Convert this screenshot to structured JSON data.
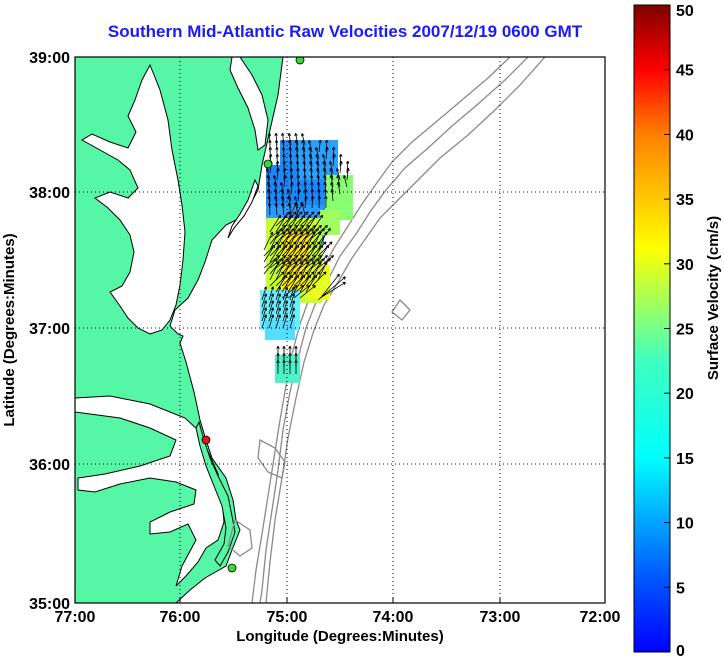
{
  "title": "Southern Mid-Atlantic Raw Velocities 2007/12/19 0600 GMT",
  "x_axis": {
    "label": "Longitude (Degrees:Minutes)",
    "ticks": [
      "77:00",
      "76:00",
      "75:00",
      "74:00",
      "73:00",
      "72:00"
    ]
  },
  "y_axis": {
    "label": "Latitude (Degrees:Minutes)",
    "ticks": [
      "39:00",
      "38:00",
      "37:00",
      "36:00",
      "35:00"
    ]
  },
  "colorbar": {
    "label": "Surface Velocity (cm/s)",
    "ticks": [
      "50",
      "45",
      "40",
      "35",
      "30",
      "25",
      "20",
      "15",
      "10",
      "5",
      "0"
    ],
    "min": 0,
    "max": 50,
    "colormap": "jet"
  },
  "colors": {
    "land": "#55f7a6",
    "coastline": "#000000",
    "bathymetry": "#8a8a8a",
    "title": "#1a1aff",
    "station_green": "#33dd33",
    "station_red": "#ee1111"
  },
  "stations": [
    {
      "color": "green",
      "lon": -74.93,
      "lat": 38.98
    },
    {
      "color": "green",
      "lon": -75.16,
      "lat": 38.27
    },
    {
      "color": "red",
      "lon": -75.72,
      "lat": 36.19
    },
    {
      "color": "green",
      "lon": -75.47,
      "lat": 35.25
    }
  ]
}
